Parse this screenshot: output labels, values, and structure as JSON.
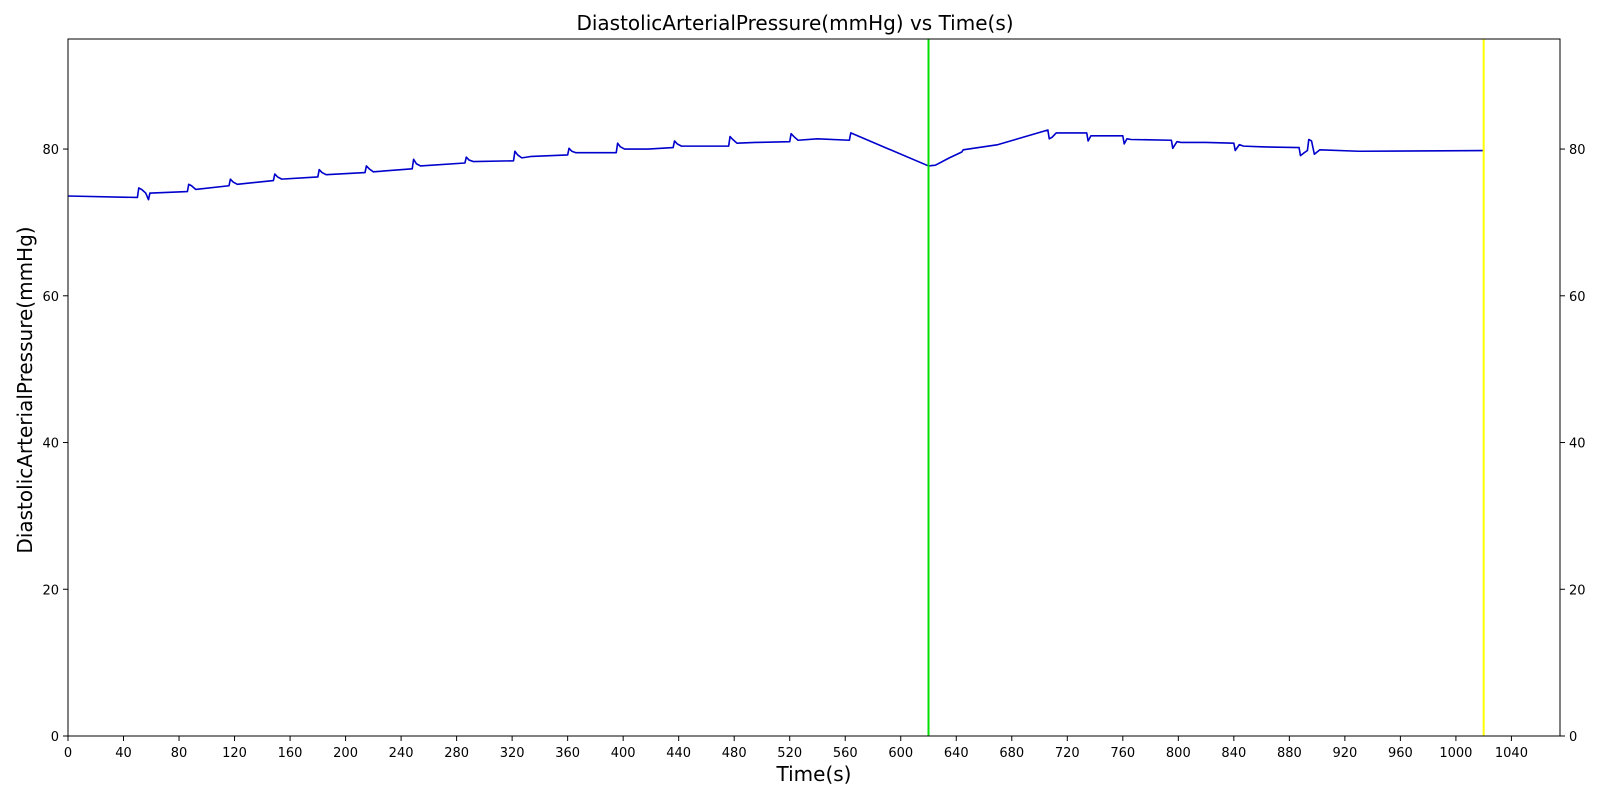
{
  "chart_data": {
    "type": "line",
    "title": "DiastolicArterialPressure(mmHg) vs Time(s)",
    "xlabel": "Time(s)",
    "ylabel": "DiastolicArterialPressure(mmHg)",
    "xlim": [
      0,
      1075
    ],
    "ylim": [
      0,
      95
    ],
    "xticks": [
      0,
      40,
      80,
      120,
      160,
      200,
      240,
      280,
      320,
      360,
      400,
      440,
      480,
      520,
      560,
      600,
      640,
      680,
      720,
      760,
      800,
      840,
      880,
      920,
      960,
      1000,
      1040
    ],
    "yticks": [
      0,
      20,
      40,
      60,
      80
    ],
    "right_yticks": true,
    "grid": false,
    "series": [
      {
        "color": "#0000cc",
        "x": [
          0,
          50,
          51,
          53,
          56,
          58,
          59,
          60,
          86,
          87,
          89,
          92,
          116,
          117,
          119,
          122,
          148,
          149,
          151,
          154,
          180,
          181,
          183,
          186,
          214,
          215,
          217,
          220,
          248,
          249,
          251,
          254,
          286,
          287,
          289,
          292,
          321,
          322,
          324,
          327,
          334,
          360,
          361,
          363,
          366,
          395,
          396,
          398,
          401,
          418,
          436,
          437,
          439,
          442,
          476,
          477,
          479,
          482,
          495,
          520,
          521,
          523,
          526,
          540,
          563,
          564,
          620,
          625,
          635,
          644,
          645,
          670,
          706,
          707,
          709,
          712,
          730,
          734,
          735,
          737,
          760,
          761,
          763,
          766,
          795,
          796,
          799,
          802,
          820,
          840,
          841,
          844,
          847,
          860,
          887,
          888,
          890,
          893,
          894,
          896,
          898,
          902,
          930,
          1020
        ],
        "y": [
          73.6,
          73.4,
          74.7,
          74.5,
          74.0,
          73.1,
          74.0,
          74.0,
          74.2,
          75.2,
          75.0,
          74.5,
          75.0,
          75.9,
          75.5,
          75.2,
          75.7,
          76.6,
          76.2,
          75.9,
          76.2,
          77.2,
          76.8,
          76.5,
          76.8,
          77.7,
          77.3,
          76.9,
          77.3,
          78.6,
          78.0,
          77.7,
          78.1,
          78.9,
          78.5,
          78.3,
          78.4,
          79.7,
          79.2,
          78.8,
          79.0,
          79.2,
          80.1,
          79.7,
          79.5,
          79.5,
          80.8,
          80.3,
          80.0,
          80.0,
          80.2,
          81.1,
          80.7,
          80.4,
          80.4,
          81.7,
          81.3,
          80.8,
          80.9,
          81.0,
          82.1,
          81.7,
          81.2,
          81.4,
          81.2,
          82.2,
          77.7,
          77.8,
          78.8,
          79.6,
          79.9,
          80.6,
          82.6,
          81.4,
          81.6,
          82.2,
          82.2,
          82.2,
          81.1,
          81.8,
          81.8,
          80.7,
          81.4,
          81.3,
          81.2,
          80.1,
          81.0,
          80.9,
          80.9,
          80.8,
          79.8,
          80.6,
          80.4,
          80.3,
          80.2,
          79.1,
          79.4,
          79.8,
          81.3,
          81.1,
          79.3,
          79.9,
          79.7,
          79.8
        ]
      }
    ],
    "vlines": [
      {
        "x": 620,
        "color": "#00dd00"
      },
      {
        "x": 1020,
        "color": "#ffff00"
      }
    ]
  }
}
